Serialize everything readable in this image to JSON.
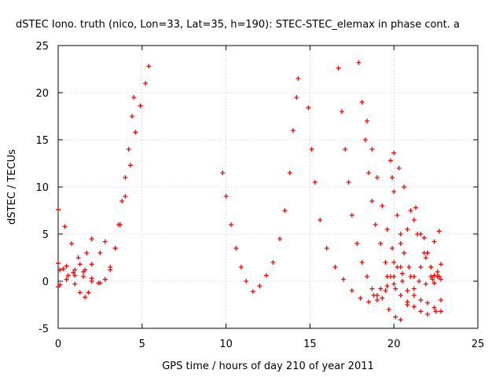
{
  "chart_data": {
    "type": "scatter",
    "title": "dSTEC Iono. truth (nico, Lon=33, Lat=35, h=190): STEC-STEC_elemax in phase cont. a",
    "xlabel": "GPS time / hours of day 210 of year 2011",
    "ylabel": "dSTEC  / TECUs",
    "xlim": [
      0,
      25
    ],
    "ylim": [
      -5,
      25
    ],
    "xticks": [
      "0",
      "5",
      "10",
      "15",
      "20",
      "25"
    ],
    "yticks": [
      "-5",
      "0",
      "5",
      "10",
      "15",
      "20",
      "25"
    ],
    "grid": true,
    "marker": "+",
    "color": "#ff0000",
    "series": [
      {
        "points": [
          [
            0.0,
            7.6
          ],
          [
            0.4,
            5.8
          ],
          [
            0.8,
            4.0
          ],
          [
            1.2,
            2.5
          ],
          [
            1.6,
            1.2
          ],
          [
            2.0,
            0.3
          ],
          [
            2.4,
            -0.2
          ],
          [
            2.8,
            0.2
          ],
          [
            3.1,
            1.5
          ],
          [
            3.4,
            3.5
          ],
          [
            3.7,
            6.0
          ],
          [
            4.0,
            9.0
          ],
          [
            4.3,
            12.3
          ],
          [
            4.6,
            15.8
          ],
          [
            4.9,
            18.6
          ],
          [
            5.2,
            21.0
          ],
          [
            5.4,
            22.8
          ]
        ]
      },
      {
        "points": [
          [
            0.1,
            -0.4
          ],
          [
            0.5,
            0.2
          ],
          [
            0.9,
            0.9
          ],
          [
            1.3,
            1.8
          ],
          [
            1.7,
            3.0
          ],
          [
            2.0,
            4.5
          ]
        ]
      },
      {
        "points": [
          [
            0.0,
            1.9
          ],
          [
            0.3,
            1.3
          ],
          [
            0.6,
            0.6
          ],
          [
            1.0,
            -0.3
          ],
          [
            1.3,
            -1.2
          ],
          [
            1.6,
            -1.7
          ],
          [
            1.8,
            -1.2
          ]
        ]
      },
      {
        "points": [
          [
            0.0,
            -0.6
          ],
          [
            0.5,
            0.2
          ],
          [
            1.0,
            0.6
          ],
          [
            1.5,
            1.0
          ],
          [
            2.0,
            1.8
          ],
          [
            2.5,
            3.0
          ],
          [
            2.8,
            4.2
          ]
        ]
      },
      {
        "points": [
          [
            0.1,
            1.2
          ],
          [
            0.5,
            1.6
          ],
          [
            1.0,
            1.2
          ],
          [
            1.5,
            0.5
          ],
          [
            2.0,
            0.0
          ],
          [
            2.5,
            -0.2
          ],
          [
            2.8,
            0.2
          ],
          [
            3.1,
            1.2
          ],
          [
            3.4,
            3.5
          ],
          [
            3.6,
            6.0
          ],
          [
            3.8,
            8.5
          ],
          [
            4.0,
            11.0
          ],
          [
            4.2,
            14.0
          ],
          [
            4.4,
            17.5
          ],
          [
            4.5,
            19.5
          ]
        ]
      },
      {
        "points": [
          [
            9.8,
            11.5
          ],
          [
            10.0,
            9.0
          ],
          [
            10.3,
            6.0
          ],
          [
            10.6,
            3.5
          ],
          [
            10.9,
            1.5
          ],
          [
            11.2,
            0.0
          ],
          [
            11.6,
            -1.1
          ],
          [
            12.0,
            -0.5
          ],
          [
            12.4,
            0.6
          ],
          [
            12.8,
            2.0
          ],
          [
            13.2,
            4.5
          ],
          [
            13.5,
            7.5
          ],
          [
            13.8,
            11.5
          ],
          [
            14.0,
            16.0
          ],
          [
            14.2,
            19.5
          ],
          [
            14.3,
            21.5
          ]
        ]
      },
      {
        "points": [
          [
            14.9,
            18.4
          ],
          [
            15.1,
            14.0
          ],
          [
            15.3,
            10.5
          ],
          [
            15.6,
            6.5
          ],
          [
            16.0,
            3.5
          ],
          [
            16.5,
            1.5
          ],
          [
            17.0,
            0.2
          ],
          [
            17.5,
            -1.0
          ],
          [
            18.0,
            -1.8
          ],
          [
            18.5,
            -2.2
          ],
          [
            19.0,
            -2.0
          ],
          [
            19.5,
            -1.0
          ],
          [
            20.0,
            -0.3
          ],
          [
            20.5,
            0.8
          ],
          [
            21.0,
            0.5
          ]
        ]
      },
      {
        "points": [
          [
            16.7,
            22.6
          ],
          [
            16.9,
            18.0
          ],
          [
            17.1,
            14.0
          ],
          [
            17.3,
            10.5
          ],
          [
            17.5,
            7.0
          ],
          [
            17.8,
            4.0
          ],
          [
            18.1,
            2.0
          ],
          [
            18.4,
            0.5
          ],
          [
            18.7,
            -0.8
          ],
          [
            19.0,
            -1.5
          ],
          [
            19.3,
            -1.8
          ],
          [
            19.6,
            -0.5
          ],
          [
            20.0,
            0.5
          ],
          [
            20.4,
            1.5
          ]
        ]
      },
      {
        "points": [
          [
            17.9,
            23.2
          ],
          [
            18.1,
            19.0
          ],
          [
            18.3,
            15.0
          ],
          [
            18.5,
            11.5
          ],
          [
            18.7,
            8.5
          ],
          [
            18.9,
            6.0
          ],
          [
            19.2,
            4.0
          ],
          [
            19.5,
            2.0
          ],
          [
            19.8,
            0.5
          ],
          [
            20.1,
            -0.8
          ],
          [
            20.4,
            -1.5
          ],
          [
            20.8,
            -2.2
          ],
          [
            21.2,
            -2.7
          ],
          [
            21.6,
            -3.2
          ],
          [
            22.0,
            -3.5
          ],
          [
            22.5,
            -3.2
          ],
          [
            22.8,
            -2.0
          ]
        ]
      },
      {
        "points": [
          [
            18.4,
            17.0
          ],
          [
            18.7,
            14.0
          ],
          [
            19.0,
            11.0
          ],
          [
            19.3,
            8.0
          ],
          [
            19.6,
            5.5
          ],
          [
            19.9,
            3.5
          ],
          [
            20.2,
            1.5
          ],
          [
            20.5,
            0.0
          ],
          [
            20.8,
            -1.0
          ],
          [
            21.2,
            -1.5
          ],
          [
            21.6,
            -2.0
          ],
          [
            22.0,
            -2.3
          ],
          [
            22.4,
            -2.8
          ],
          [
            22.8,
            -3.2
          ]
        ]
      },
      {
        "points": [
          [
            19.8,
            12.8
          ],
          [
            19.9,
            11.0
          ],
          [
            20.0,
            9.5
          ],
          [
            20.2,
            7.0
          ],
          [
            20.4,
            5.0
          ],
          [
            20.6,
            3.0
          ],
          [
            20.9,
            1.5
          ],
          [
            21.2,
            0.5
          ],
          [
            21.5,
            0.0
          ],
          [
            21.9,
            -0.3
          ],
          [
            22.3,
            0.2
          ],
          [
            22.7,
            0.5
          ]
        ]
      },
      {
        "points": [
          [
            20.0,
            13.6
          ],
          [
            20.3,
            12.0
          ],
          [
            20.6,
            10.0
          ],
          [
            21.0,
            7.5
          ],
          [
            21.4,
            5.0
          ],
          [
            21.8,
            3.0
          ],
          [
            22.2,
            1.5
          ],
          [
            22.6,
            0.5
          ],
          [
            22.8,
            0.2
          ]
        ]
      },
      {
        "points": [
          [
            18.8,
            -1.5
          ],
          [
            19.2,
            -0.8
          ],
          [
            19.6,
            0.5
          ],
          [
            20.0,
            2.0
          ],
          [
            20.4,
            4.0
          ],
          [
            20.8,
            5.5
          ],
          [
            21.2,
            6.5
          ]
        ]
      },
      {
        "points": [
          [
            19.7,
            -3.0
          ],
          [
            20.1,
            -3.8
          ],
          [
            20.4,
            -4.1
          ],
          [
            20.8,
            -2.5
          ],
          [
            21.2,
            -0.8
          ],
          [
            21.6,
            1.5
          ],
          [
            22.0,
            3.0
          ],
          [
            22.4,
            4.2
          ],
          [
            22.7,
            5.3
          ]
        ]
      },
      {
        "points": [
          [
            21.3,
            7.8
          ],
          [
            21.6,
            5.0
          ],
          [
            21.9,
            2.5
          ],
          [
            22.2,
            0.5
          ],
          [
            22.4,
            -0.2
          ]
        ]
      },
      {
        "points": [
          [
            21.8,
            4.6
          ],
          [
            22.0,
            3.0
          ],
          [
            22.2,
            1.5
          ],
          [
            22.4,
            0.6
          ],
          [
            22.6,
            1.0
          ],
          [
            22.8,
            1.8
          ]
        ]
      }
    ]
  }
}
